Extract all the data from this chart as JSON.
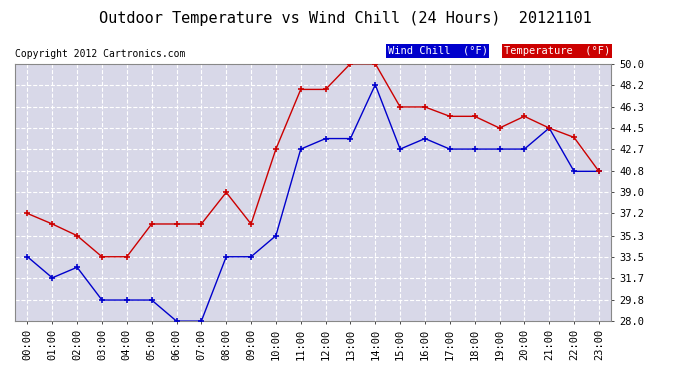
{
  "title": "Outdoor Temperature vs Wind Chill (24 Hours)  20121101",
  "copyright": "Copyright 2012 Cartronics.com",
  "hours": [
    "00:00",
    "01:00",
    "02:00",
    "03:00",
    "04:00",
    "05:00",
    "06:00",
    "07:00",
    "08:00",
    "09:00",
    "10:00",
    "11:00",
    "12:00",
    "13:00",
    "14:00",
    "15:00",
    "16:00",
    "17:00",
    "18:00",
    "19:00",
    "20:00",
    "21:00",
    "22:00",
    "23:00"
  ],
  "temperature": [
    37.2,
    36.3,
    35.3,
    33.5,
    33.5,
    36.3,
    36.3,
    36.3,
    39.0,
    36.3,
    42.7,
    47.8,
    47.8,
    50.0,
    50.0,
    46.3,
    46.3,
    45.5,
    45.5,
    44.5,
    45.5,
    44.5,
    43.7,
    40.8
  ],
  "wind_chill": [
    33.5,
    31.7,
    32.6,
    29.8,
    29.8,
    29.8,
    28.0,
    28.0,
    33.5,
    33.5,
    35.3,
    42.7,
    43.6,
    43.6,
    48.2,
    42.7,
    43.6,
    42.7,
    42.7,
    42.7,
    42.7,
    44.5,
    40.8,
    40.8
  ],
  "ylim": [
    28.0,
    50.0
  ],
  "yticks": [
    28.0,
    29.8,
    31.7,
    33.5,
    35.3,
    37.2,
    39.0,
    40.8,
    42.7,
    44.5,
    46.3,
    48.2,
    50.0
  ],
  "temp_color": "#cc0000",
  "wind_color": "#0000cc",
  "background_color": "#ffffff",
  "plot_bg_color": "#d8d8e8",
  "grid_color": "#ffffff",
  "legend_wind_bg": "#0000cc",
  "legend_temp_bg": "#cc0000",
  "title_fontsize": 11,
  "axis_fontsize": 7.5,
  "copyright_fontsize": 7
}
